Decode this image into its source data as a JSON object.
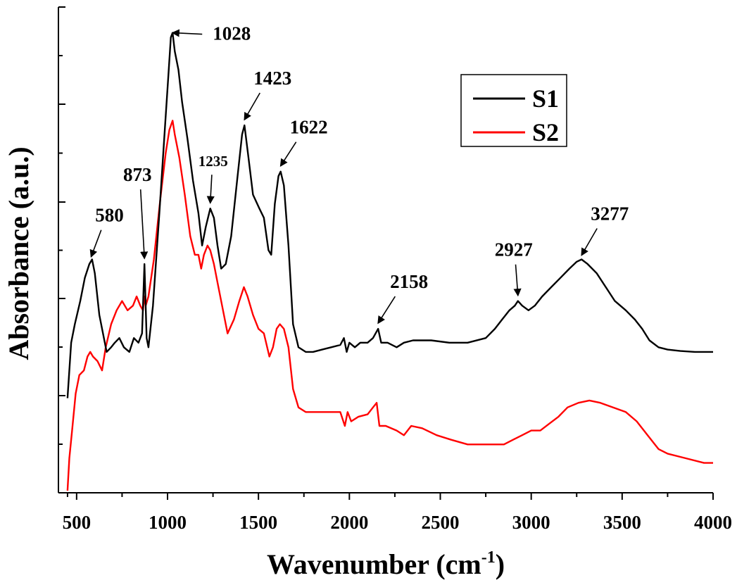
{
  "chart_data": {
    "type": "line",
    "title": "",
    "xlabel": "Wavenumber (cm",
    "xlabel_sup": "-1",
    "xlabel_close": ")",
    "ylabel": "Absorbance (a.u.)",
    "xlim": [
      400,
      4000
    ],
    "x_ticks": [
      500,
      1000,
      1500,
      2000,
      2500,
      3000,
      3500,
      4000
    ],
    "x_tick_labels": [
      "500",
      "1000",
      "1500",
      "2000",
      "2500",
      "3000",
      "3500",
      "4000"
    ],
    "y_ticks_shown": false,
    "grid": false,
    "legend_placement": "top-right",
    "series": [
      {
        "name": "S1",
        "color": "#000000",
        "points": [
          [
            450,
            0.2
          ],
          [
            470,
            0.32
          ],
          [
            490,
            0.36
          ],
          [
            520,
            0.41
          ],
          [
            545,
            0.46
          ],
          [
            570,
            0.49
          ],
          [
            585,
            0.5
          ],
          [
            600,
            0.47
          ],
          [
            625,
            0.38
          ],
          [
            650,
            0.33
          ],
          [
            665,
            0.3
          ],
          [
            690,
            0.31
          ],
          [
            710,
            0.32
          ],
          [
            735,
            0.33
          ],
          [
            760,
            0.31
          ],
          [
            790,
            0.3
          ],
          [
            815,
            0.33
          ],
          [
            840,
            0.32
          ],
          [
            860,
            0.34
          ],
          [
            873,
            0.49
          ],
          [
            885,
            0.33
          ],
          [
            895,
            0.31
          ],
          [
            920,
            0.4
          ],
          [
            955,
            0.6
          ],
          [
            985,
            0.78
          ],
          [
            1005,
            0.9
          ],
          [
            1018,
            0.98
          ],
          [
            1028,
            0.99
          ],
          [
            1040,
            0.95
          ],
          [
            1060,
            0.91
          ],
          [
            1080,
            0.84
          ],
          [
            1110,
            0.76
          ],
          [
            1140,
            0.67
          ],
          [
            1170,
            0.6
          ],
          [
            1190,
            0.53
          ],
          [
            1210,
            0.57
          ],
          [
            1235,
            0.61
          ],
          [
            1255,
            0.59
          ],
          [
            1275,
            0.53
          ],
          [
            1295,
            0.48
          ],
          [
            1320,
            0.49
          ],
          [
            1350,
            0.55
          ],
          [
            1385,
            0.68
          ],
          [
            1410,
            0.77
          ],
          [
            1423,
            0.79
          ],
          [
            1445,
            0.72
          ],
          [
            1470,
            0.64
          ],
          [
            1505,
            0.61
          ],
          [
            1530,
            0.59
          ],
          [
            1555,
            0.52
          ],
          [
            1570,
            0.51
          ],
          [
            1590,
            0.62
          ],
          [
            1610,
            0.68
          ],
          [
            1622,
            0.69
          ],
          [
            1640,
            0.66
          ],
          [
            1665,
            0.53
          ],
          [
            1690,
            0.36
          ],
          [
            1720,
            0.31
          ],
          [
            1760,
            0.3
          ],
          [
            1800,
            0.3
          ],
          [
            1850,
            0.305
          ],
          [
            1900,
            0.31
          ],
          [
            1950,
            0.315
          ],
          [
            1970,
            0.33
          ],
          [
            1985,
            0.3
          ],
          [
            2000,
            0.32
          ],
          [
            2030,
            0.31
          ],
          [
            2060,
            0.32
          ],
          [
            2100,
            0.32
          ],
          [
            2130,
            0.33
          ],
          [
            2158,
            0.35
          ],
          [
            2175,
            0.32
          ],
          [
            2210,
            0.32
          ],
          [
            2260,
            0.31
          ],
          [
            2300,
            0.32
          ],
          [
            2350,
            0.325
          ],
          [
            2450,
            0.325
          ],
          [
            2550,
            0.32
          ],
          [
            2650,
            0.32
          ],
          [
            2750,
            0.33
          ],
          [
            2800,
            0.35
          ],
          [
            2840,
            0.37
          ],
          [
            2880,
            0.39
          ],
          [
            2910,
            0.4
          ],
          [
            2927,
            0.41
          ],
          [
            2950,
            0.4
          ],
          [
            2985,
            0.39
          ],
          [
            3020,
            0.4
          ],
          [
            3060,
            0.42
          ],
          [
            3110,
            0.44
          ],
          [
            3160,
            0.46
          ],
          [
            3210,
            0.48
          ],
          [
            3250,
            0.495
          ],
          [
            3277,
            0.5
          ],
          [
            3310,
            0.49
          ],
          [
            3360,
            0.47
          ],
          [
            3410,
            0.44
          ],
          [
            3460,
            0.41
          ],
          [
            3520,
            0.39
          ],
          [
            3570,
            0.37
          ],
          [
            3610,
            0.35
          ],
          [
            3650,
            0.325
          ],
          [
            3700,
            0.31
          ],
          [
            3750,
            0.305
          ],
          [
            3820,
            0.302
          ],
          [
            3900,
            0.3
          ],
          [
            4000,
            0.3
          ]
        ]
      },
      {
        "name": "S2",
        "color": "#ff0000",
        "points": [
          [
            450,
            0.0
          ],
          [
            460,
            0.07
          ],
          [
            475,
            0.13
          ],
          [
            495,
            0.21
          ],
          [
            515,
            0.25
          ],
          [
            540,
            0.26
          ],
          [
            560,
            0.29
          ],
          [
            575,
            0.3
          ],
          [
            590,
            0.29
          ],
          [
            615,
            0.28
          ],
          [
            640,
            0.26
          ],
          [
            660,
            0.31
          ],
          [
            690,
            0.36
          ],
          [
            720,
            0.39
          ],
          [
            750,
            0.41
          ],
          [
            780,
            0.39
          ],
          [
            810,
            0.4
          ],
          [
            830,
            0.42
          ],
          [
            850,
            0.4
          ],
          [
            865,
            0.39
          ],
          [
            873,
            0.42
          ],
          [
            880,
            0.4
          ],
          [
            895,
            0.42
          ],
          [
            925,
            0.5
          ],
          [
            960,
            0.63
          ],
          [
            990,
            0.73
          ],
          [
            1010,
            0.78
          ],
          [
            1028,
            0.8
          ],
          [
            1040,
            0.77
          ],
          [
            1065,
            0.72
          ],
          [
            1095,
            0.64
          ],
          [
            1125,
            0.55
          ],
          [
            1150,
            0.51
          ],
          [
            1170,
            0.51
          ],
          [
            1185,
            0.48
          ],
          [
            1200,
            0.51
          ],
          [
            1220,
            0.53
          ],
          [
            1235,
            0.52
          ],
          [
            1255,
            0.49
          ],
          [
            1275,
            0.45
          ],
          [
            1300,
            0.4
          ],
          [
            1330,
            0.34
          ],
          [
            1365,
            0.37
          ],
          [
            1395,
            0.41
          ],
          [
            1420,
            0.44
          ],
          [
            1440,
            0.42
          ],
          [
            1470,
            0.38
          ],
          [
            1500,
            0.35
          ],
          [
            1530,
            0.34
          ],
          [
            1560,
            0.29
          ],
          [
            1580,
            0.31
          ],
          [
            1600,
            0.35
          ],
          [
            1618,
            0.36
          ],
          [
            1640,
            0.35
          ],
          [
            1665,
            0.31
          ],
          [
            1690,
            0.22
          ],
          [
            1720,
            0.18
          ],
          [
            1760,
            0.17
          ],
          [
            1850,
            0.17
          ],
          [
            1950,
            0.17
          ],
          [
            1975,
            0.14
          ],
          [
            1990,
            0.17
          ],
          [
            2010,
            0.15
          ],
          [
            2050,
            0.16
          ],
          [
            2100,
            0.165
          ],
          [
            2130,
            0.18
          ],
          [
            2150,
            0.19
          ],
          [
            2165,
            0.14
          ],
          [
            2200,
            0.14
          ],
          [
            2260,
            0.13
          ],
          [
            2300,
            0.12
          ],
          [
            2340,
            0.14
          ],
          [
            2400,
            0.135
          ],
          [
            2480,
            0.12
          ],
          [
            2560,
            0.11
          ],
          [
            2650,
            0.1
          ],
          [
            2750,
            0.1
          ],
          [
            2850,
            0.1
          ],
          [
            2900,
            0.11
          ],
          [
            2950,
            0.12
          ],
          [
            3000,
            0.13
          ],
          [
            3050,
            0.13
          ],
          [
            3100,
            0.145
          ],
          [
            3150,
            0.16
          ],
          [
            3200,
            0.18
          ],
          [
            3260,
            0.19
          ],
          [
            3320,
            0.195
          ],
          [
            3380,
            0.19
          ],
          [
            3450,
            0.18
          ],
          [
            3520,
            0.17
          ],
          [
            3580,
            0.15
          ],
          [
            3640,
            0.12
          ],
          [
            3700,
            0.09
          ],
          [
            3750,
            0.08
          ],
          [
            3850,
            0.07
          ],
          [
            3950,
            0.06
          ],
          [
            4000,
            0.06
          ]
        ]
      }
    ],
    "annotations": [
      {
        "label": "580",
        "x": 580
      },
      {
        "label": "873",
        "x": 873
      },
      {
        "label": "1028",
        "x": 1028
      },
      {
        "label": "1235",
        "x": 1235
      },
      {
        "label": "1423",
        "x": 1423
      },
      {
        "label": "1622",
        "x": 1622
      },
      {
        "label": "2158",
        "x": 2158
      },
      {
        "label": "2927",
        "x": 2927
      },
      {
        "label": "3277",
        "x": 3277
      }
    ]
  }
}
